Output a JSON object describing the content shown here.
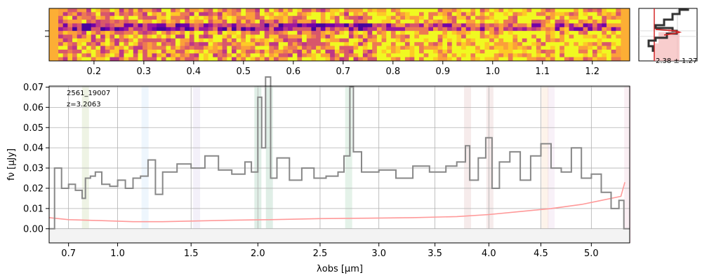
{
  "chart_data": [
    {
      "type": "heatmap",
      "colormap": "plasma",
      "x_ticks": [
        "0.2",
        "0.3",
        "0.4",
        "0.5",
        "0.6",
        "0.7",
        "0.8",
        "0.9",
        "1.0",
        "1.1",
        "1.2"
      ],
      "x_tick_values": [
        0.2,
        0.3,
        0.4,
        0.5,
        0.6,
        0.7,
        0.8,
        0.9,
        1.0,
        1.1,
        1.2
      ]
    },
    {
      "type": "line",
      "annotation": "2.38 ± 1.27",
      "series": [
        {
          "role": "profile",
          "color": "#333333"
        },
        {
          "role": "model",
          "color": "#d62728"
        }
      ]
    },
    {
      "type": "line",
      "object_id": "2561_19007",
      "redshift_label": "z=3.2063",
      "xlabel": "λobs [μm]",
      "ylabel": "fν [μJy]",
      "xlim": [
        0.59,
        5.39
      ],
      "ylim": [
        -0.007,
        0.0705
      ],
      "x_ticks": [
        "0.7",
        "1.0",
        "1.5",
        "2.0",
        "2.5",
        "3.0",
        "3.5",
        "4.0",
        "4.5",
        "5.0"
      ],
      "x_tick_values": [
        0.7,
        1.0,
        1.5,
        2.0,
        2.5,
        3.0,
        3.5,
        4.0,
        4.5,
        5.0
      ],
      "y_ticks": [
        "0.00",
        "0.01",
        "0.02",
        "0.03",
        "0.04",
        "0.05",
        "0.06",
        "0.07"
      ],
      "y_tick_values": [
        0.0,
        0.01,
        0.02,
        0.03,
        0.04,
        0.05,
        0.06,
        0.07
      ],
      "grid": true,
      "series": [
        {
          "role": "flux",
          "color": "#888888",
          "x": [
            0.59,
            0.62,
            0.66,
            0.7,
            0.74,
            0.78,
            0.8,
            0.83,
            0.86,
            0.9,
            0.95,
            1.0,
            1.05,
            1.1,
            1.15,
            1.2,
            1.25,
            1.3,
            1.4,
            1.5,
            1.6,
            1.7,
            1.8,
            1.9,
            1.95,
            2.0,
            2.03,
            2.06,
            2.1,
            2.15,
            2.25,
            2.35,
            2.45,
            2.55,
            2.65,
            2.7,
            2.75,
            2.78,
            2.85,
            3.0,
            3.15,
            3.3,
            3.45,
            3.6,
            3.7,
            3.78,
            3.82,
            3.9,
            3.97,
            4.03,
            4.1,
            4.2,
            4.3,
            4.4,
            4.5,
            4.6,
            4.7,
            4.8,
            4.9,
            5.0,
            5.1,
            5.2,
            5.28,
            5.33,
            5.39
          ],
          "y": [
            0.0,
            0.03,
            0.02,
            0.022,
            0.019,
            0.015,
            0.025,
            0.026,
            0.028,
            0.022,
            0.021,
            0.024,
            0.02,
            0.025,
            0.026,
            0.034,
            0.017,
            0.028,
            0.032,
            0.03,
            0.036,
            0.029,
            0.027,
            0.033,
            0.028,
            0.065,
            0.04,
            0.075,
            0.025,
            0.035,
            0.024,
            0.03,
            0.025,
            0.026,
            0.028,
            0.036,
            0.07,
            0.038,
            0.028,
            0.029,
            0.025,
            0.031,
            0.028,
            0.031,
            0.033,
            0.041,
            0.024,
            0.035,
            0.045,
            0.02,
            0.033,
            0.038,
            0.024,
            0.036,
            0.042,
            0.03,
            0.028,
            0.04,
            0.025,
            0.027,
            0.018,
            0.01,
            0.014,
            0.0,
            0.0
          ]
        },
        {
          "role": "error",
          "color": "#ff9999",
          "x": [
            0.59,
            0.7,
            0.9,
            1.1,
            1.3,
            1.5,
            1.8,
            2.1,
            2.5,
            2.9,
            3.3,
            3.7,
            4.0,
            4.3,
            4.6,
            4.9,
            5.1,
            5.3,
            5.34
          ],
          "y": [
            0.0055,
            0.0045,
            0.004,
            0.0035,
            0.0035,
            0.0038,
            0.0042,
            0.0045,
            0.005,
            0.0052,
            0.0055,
            0.006,
            0.007,
            0.0085,
            0.01,
            0.012,
            0.014,
            0.016,
            0.023
          ]
        }
      ],
      "line_markers": [
        {
          "x": 0.8,
          "color": "#8ab04a"
        },
        {
          "x": 1.18,
          "color": "#8bc4ef"
        },
        {
          "x": 1.54,
          "color": "#b09cd8"
        },
        {
          "x": 2.0,
          "color": "#2a8a5a"
        },
        {
          "x": 2.09,
          "color": "#2a8a5a"
        },
        {
          "x": 2.74,
          "color": "#4aa86a"
        },
        {
          "x": 3.8,
          "color": "#c07878"
        },
        {
          "x": 4.01,
          "color": "#c07878"
        },
        {
          "x": 4.54,
          "color": "#f0b070"
        },
        {
          "x": 4.6,
          "color": "#d0a0d0"
        },
        {
          "x": 5.37,
          "color": "#e090b0"
        }
      ]
    }
  ]
}
